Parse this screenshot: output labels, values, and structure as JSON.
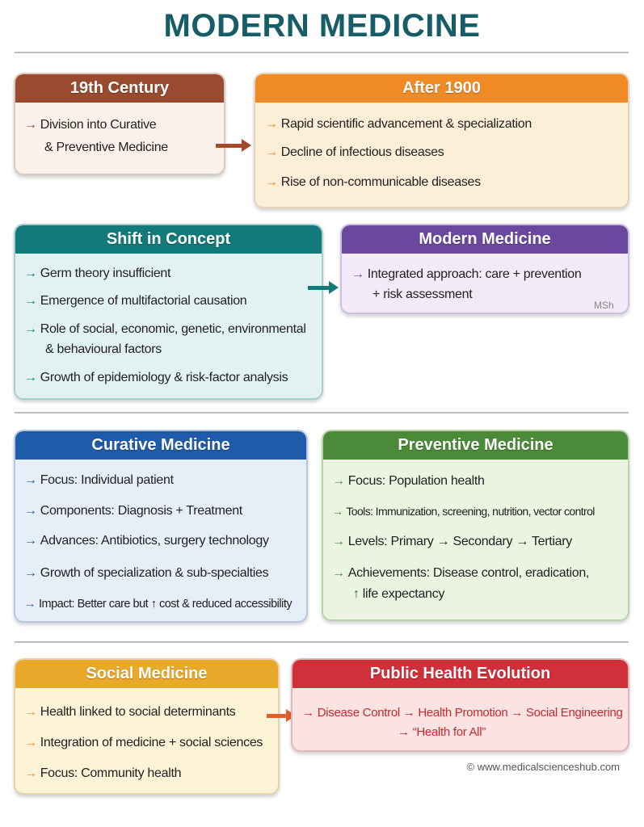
{
  "title": "MODERN MEDICINE",
  "colors": {
    "title": "#175d68",
    "century": "#9a4a2e",
    "after1900": "#f08a24",
    "shift": "#127a7a",
    "modern": "#6a48a0",
    "curative": "#1f5ba8",
    "preventive": "#4a8a38",
    "social": "#e8a82a",
    "public_health": "#d0303a"
  },
  "icons": {
    "bullet": "arrow-right-icon",
    "increase": "arrow-up-icon"
  },
  "cards": {
    "century": {
      "title": "19th Century",
      "items": [
        "Division into Curative",
        "& Preventive Medicine"
      ]
    },
    "after1900": {
      "title": "After 1900",
      "items": [
        "Rapid scientific advancement & specialization",
        "Decline of infectious diseases",
        "Rise of non-communicable diseases"
      ]
    },
    "shift": {
      "title": "Shift in Concept",
      "items": [
        "Germ theory insufficient",
        "Emergence of multifactorial causation",
        "Role of social, economic, genetic, environmental",
        "& behavioural factors",
        "Growth of epidemiology & risk-factor analysis"
      ]
    },
    "modern": {
      "title": "Modern Medicine",
      "items": [
        "Integrated approach: care + prevention",
        "+ risk assessment"
      ],
      "mark": "MSh"
    },
    "curative": {
      "title": "Curative Medicine",
      "items": [
        "Focus: Individual patient",
        "Components: Diagnosis + Treatment",
        "Advances: Antibiotics, surgery technology",
        "Growth of specialization & sub-specialties",
        "Impact: Better care but ↑ cost & reduced accessibility"
      ]
    },
    "preventive": {
      "title": "Preventive Medicine",
      "items": [
        "Focus: Population health",
        "Tools: Immunization, screening, nutrition, vector control",
        "Levels: Primary → Secondary → Tertiary",
        "Achievements: Disease control, eradication,",
        "life expectancy"
      ]
    },
    "social": {
      "title": "Social Medicine",
      "items": [
        "Health linked to social determinants",
        "Integration of medicine + social sciences",
        "Focus: Community health"
      ]
    },
    "public_health": {
      "title": "Public Health Evolution",
      "items": [
        "Disease Control → Health Promotion → Social Engineering",
        "“Health for All”"
      ]
    }
  },
  "footer": {
    "copyright": "© www.medicalscienceshub.com"
  }
}
